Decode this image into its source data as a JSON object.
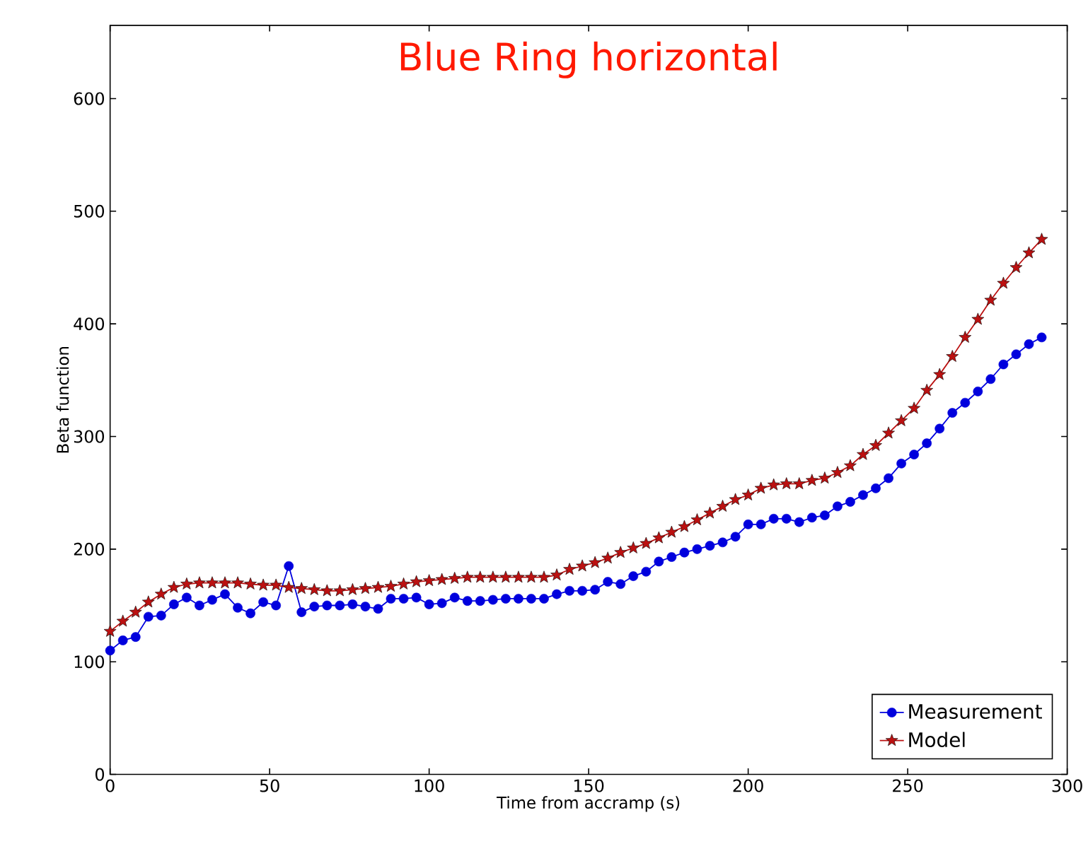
{
  "chart_data": {
    "type": "line",
    "title": "Blue Ring horizontal",
    "xlabel": "Time from accramp (s)",
    "ylabel": "Beta function",
    "xlim": [
      0,
      300
    ],
    "ylim": [
      0,
      665
    ],
    "xticks": [
      0,
      50,
      100,
      150,
      200,
      250,
      300
    ],
    "yticks": [
      0,
      100,
      200,
      300,
      400,
      500,
      600
    ],
    "legend": "bottom right",
    "grid": false,
    "x": [
      0,
      4,
      8,
      12,
      16,
      20,
      24,
      28,
      32,
      36,
      40,
      44,
      48,
      52,
      56,
      60,
      64,
      68,
      72,
      76,
      80,
      84,
      88,
      92,
      96,
      100,
      104,
      108,
      112,
      116,
      120,
      124,
      128,
      132,
      136,
      140,
      144,
      148,
      152,
      156,
      160,
      164,
      168,
      172,
      176,
      180,
      184,
      188,
      192,
      196,
      200,
      204,
      208,
      212,
      216,
      220,
      224,
      228,
      232,
      236,
      240,
      244,
      248,
      252,
      256,
      260,
      264,
      268,
      272,
      276,
      280,
      284,
      288,
      292
    ],
    "series": [
      {
        "name": "Measurement",
        "color": "#0000dd",
        "marker": "circle",
        "values": [
          110,
          119,
          122,
          140,
          141,
          151,
          157,
          150,
          155,
          160,
          148,
          143,
          153,
          150,
          185,
          144,
          149,
          150,
          150,
          151,
          149,
          147,
          156,
          156,
          157,
          151,
          152,
          157,
          154,
          154,
          155,
          156,
          156,
          156,
          156,
          160,
          163,
          163,
          164,
          171,
          169,
          176,
          180,
          189,
          193,
          197,
          200,
          203,
          206,
          211,
          222,
          222,
          227,
          227,
          224,
          228,
          230,
          238,
          242,
          248,
          254,
          263,
          276,
          284,
          294,
          307,
          321,
          330,
          340,
          351,
          364,
          373,
          382,
          388
        ]
      },
      {
        "name": "Model",
        "color": "#bb1111",
        "marker": "star",
        "values": [
          127,
          136,
          144,
          153,
          160,
          166,
          169,
          170,
          170,
          170,
          170,
          169,
          168,
          168,
          166,
          165,
          164,
          163,
          163,
          164,
          165,
          166,
          167,
          169,
          171,
          172,
          173,
          174,
          175,
          175,
          175,
          175,
          175,
          175,
          175,
          177,
          182,
          185,
          188,
          192,
          197,
          201,
          205,
          210,
          215,
          220,
          226,
          232,
          238,
          244,
          248,
          254,
          257,
          258,
          258,
          261,
          263,
          268,
          274,
          284,
          292,
          303,
          314,
          325,
          341,
          355,
          371,
          388,
          404,
          421,
          436,
          450,
          463,
          475
        ]
      }
    ]
  }
}
